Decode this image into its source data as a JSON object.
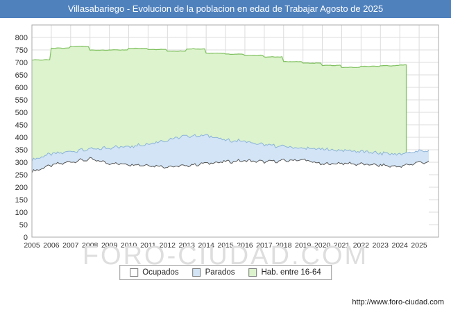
{
  "header": {
    "title": "Villasabariego - Evolucion de la poblacion en edad de Trabajar Agosto de 2025"
  },
  "watermark": {
    "text": "FORO-CIUDAD.COM"
  },
  "footer": {
    "url": "http://www.foro-ciudad.com"
  },
  "colors": {
    "title_bar": "#4f81bd",
    "grid": "#dcdcdc",
    "plot_border": "#a8a8a8",
    "axis_text": "#333333"
  },
  "legend": {
    "items": [
      {
        "label": "Ocupados",
        "fill": "#ffffff"
      },
      {
        "label": "Parados",
        "fill": "#d2e4f5"
      },
      {
        "label": "Hab. entre 16-64",
        "fill": "#dcf3cd"
      }
    ]
  },
  "chart_data": {
    "type": "area",
    "title": "Villasabariego - Evolucion de la poblacion en edad de Trabajar Agosto de 2025",
    "xlabel": "",
    "ylabel": "",
    "x_range": [
      2005,
      2026
    ],
    "x_end": 2025.58,
    "ylim": [
      0,
      850
    ],
    "y_ticks": [
      0,
      50,
      100,
      150,
      200,
      250,
      300,
      350,
      400,
      450,
      500,
      550,
      600,
      650,
      700,
      750,
      800
    ],
    "x_ticks": [
      2005,
      2006,
      2007,
      2008,
      2009,
      2010,
      2011,
      2012,
      2013,
      2014,
      2015,
      2016,
      2017,
      2018,
      2019,
      2020,
      2021,
      2022,
      2023,
      2024,
      2025
    ],
    "grid": true,
    "legend_position": "bottom",
    "stacking": "Parados is stacked on top of Ocupados; Hab. entre 16-64 is the background area and its data ends in early-mid 2024",
    "years": [
      2005,
      2006,
      2007,
      2008,
      2009,
      2010,
      2011,
      2012,
      2013,
      2014,
      2015,
      2016,
      2017,
      2018,
      2019,
      2020,
      2021,
      2022,
      2023,
      2024,
      2025
    ],
    "series": [
      {
        "id": "hab_16_64",
        "name": "Hab. entre 16-64",
        "mode": "step",
        "end": 2024.4,
        "jitter": 1.5,
        "fill": "#dcf3cd",
        "stroke": "#7fc05e",
        "values": [
          710,
          757,
          764,
          749,
          750,
          756,
          752,
          745,
          754,
          737,
          733,
          728,
          722,
          703,
          697,
          688,
          680,
          684,
          687,
          690,
          null
        ]
      },
      {
        "id": "parados",
        "name": "Parados",
        "mode": "stacked-on-ocupados",
        "jitter": 6,
        "fill": "#d2e4f5",
        "stroke": "#8cb3d9",
        "values": [
          48,
          44,
          42,
          40,
          62,
          72,
          86,
          108,
          118,
          112,
          88,
          76,
          68,
          56,
          46,
          60,
          52,
          50,
          48,
          50,
          45
        ]
      },
      {
        "id": "ocupados",
        "name": "Ocupados",
        "mode": "base",
        "jitter": 9,
        "fill": "#ffffff",
        "stroke": "#555555",
        "values": [
          262,
          288,
          302,
          312,
          296,
          292,
          288,
          282,
          286,
          296,
          302,
          306,
          302,
          306,
          310,
          292,
          296,
          292,
          288,
          282,
          300
        ]
      }
    ]
  }
}
